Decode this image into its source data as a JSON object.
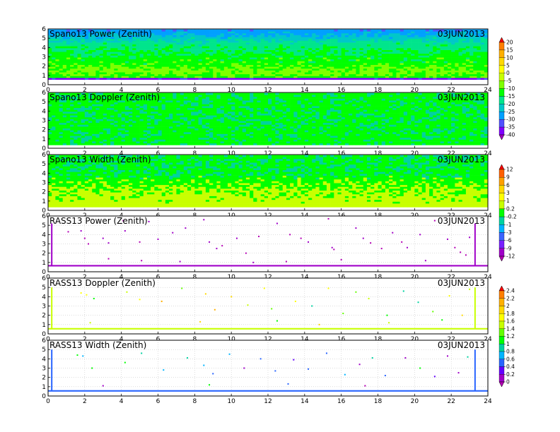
{
  "figure": {
    "date": "03JUN2013"
  },
  "chart_data": [
    {
      "type": "heatmap",
      "title": "Spano13 Power (Zenith)",
      "date": "03JUN2013",
      "xlim": [
        0,
        24
      ],
      "ylim": [
        0,
        6
      ],
      "xticks": [
        0,
        2,
        4,
        6,
        8,
        10,
        12,
        14,
        16,
        18,
        20,
        22,
        24
      ],
      "yticks": [
        0,
        1,
        2,
        3,
        4,
        5,
        6
      ],
      "colorbar": "power",
      "ymin_data": 0.55,
      "ymax_data": 5.95,
      "profile": [
        {
          "h": 0.55,
          "value": -34
        },
        {
          "h": 0.65,
          "value": -37
        },
        {
          "h": 0.8,
          "value": -12
        },
        {
          "h": 1.4,
          "value": -8
        },
        {
          "h": 2.2,
          "value": -12
        },
        {
          "h": 3.0,
          "value": -13
        },
        {
          "h": 3.8,
          "value": -16
        },
        {
          "h": 4.5,
          "value": -18
        },
        {
          "h": 5.2,
          "value": -24
        },
        {
          "h": 5.95,
          "value": -29
        }
      ]
    },
    {
      "type": "heatmap",
      "title": "Spano13 Doppler (Zenith)",
      "date": "03JUN2013",
      "xlim": [
        0,
        24
      ],
      "ylim": [
        0,
        6
      ],
      "xticks": [
        0,
        2,
        4,
        6,
        8,
        10,
        12,
        14,
        16,
        18,
        20,
        22,
        24
      ],
      "yticks": [
        0,
        1,
        2,
        3,
        4,
        5,
        6
      ],
      "colorbar": "doppler",
      "ymin_data": 0.35,
      "ymax_data": 5.95,
      "profile": [
        {
          "h": 0.35,
          "value": -0.05
        },
        {
          "h": 3.0,
          "value": -0.1
        },
        {
          "h": 5.95,
          "value": -0.05
        }
      ]
    },
    {
      "type": "heatmap",
      "title": "Spano13 Width (Zenith)",
      "date": "03JUN2013",
      "xlim": [
        0,
        24
      ],
      "ylim": [
        0,
        6
      ],
      "xticks": [
        0,
        2,
        4,
        6,
        8,
        10,
        12,
        14,
        16,
        18,
        20,
        22,
        24
      ],
      "yticks": [
        0,
        1,
        2,
        3,
        4,
        5,
        6
      ],
      "colorbar": "doppler",
      "ymin_data": 0.35,
      "ymax_data": 5.95,
      "profile": [
        {
          "h": 0.35,
          "value": 0.5
        },
        {
          "h": 1.0,
          "value": 0.4
        },
        {
          "h": 2.0,
          "value": 0.3
        },
        {
          "h": 4.0,
          "value": -0.1
        },
        {
          "h": 5.95,
          "value": -0.1
        }
      ]
    },
    {
      "type": "scatter",
      "title": "RASS13 Power (Zenith)",
      "date": "03JUN2013",
      "xlim": [
        0,
        24
      ],
      "ylim": [
        0,
        6
      ],
      "xticks": [
        0,
        2,
        4,
        6,
        8,
        10,
        12,
        14,
        16,
        18,
        20,
        22,
        24
      ],
      "yticks": [
        0,
        1,
        2,
        3,
        4,
        5,
        6
      ],
      "colorbar": "doppler",
      "baseline_height": 0.65,
      "baseline_value": -12,
      "spikes_x": [
        0.2,
        23.3
      ],
      "spike_top": 5.2,
      "points": [
        [
          1.1,
          4.3
        ],
        [
          1.8,
          4.4
        ],
        [
          2.0,
          3.6
        ],
        [
          2.2,
          3.0
        ],
        [
          3.0,
          3.6
        ],
        [
          3.3,
          3.1
        ],
        [
          4.1,
          5.5
        ],
        [
          4.2,
          4.4
        ],
        [
          5.0,
          3.2
        ],
        [
          5.5,
          5.4
        ],
        [
          6.0,
          3.5
        ],
        [
          6.8,
          4.2
        ],
        [
          7.5,
          4.7
        ],
        [
          8.5,
          5.6
        ],
        [
          8.8,
          3.2
        ],
        [
          9.2,
          2.5
        ],
        [
          9.5,
          2.8
        ],
        [
          10.3,
          3.6
        ],
        [
          10.8,
          2.0
        ],
        [
          11.5,
          3.8
        ],
        [
          12.5,
          5.2
        ],
        [
          13.2,
          4.0
        ],
        [
          13.8,
          3.6
        ],
        [
          14.2,
          3.2
        ],
        [
          15.3,
          5.7
        ],
        [
          15.5,
          2.6
        ],
        [
          15.6,
          2.4
        ],
        [
          16.8,
          4.7
        ],
        [
          17.2,
          3.6
        ],
        [
          17.6,
          3.1
        ],
        [
          18.2,
          2.5
        ],
        [
          18.8,
          4.2
        ],
        [
          19.3,
          3.2
        ],
        [
          19.6,
          2.6
        ],
        [
          20.3,
          4.0
        ],
        [
          21.1,
          5.5
        ],
        [
          21.8,
          3.5
        ],
        [
          22.2,
          2.6
        ],
        [
          22.5,
          2.1
        ],
        [
          22.8,
          1.8
        ],
        [
          23.0,
          3.7
        ],
        [
          3.3,
          1.4
        ],
        [
          5.1,
          1.2
        ],
        [
          7.2,
          1.1
        ],
        [
          11.2,
          1.0
        ],
        [
          13.0,
          1.1
        ],
        [
          16.0,
          1.3
        ],
        [
          20.6,
          1.2
        ]
      ]
    },
    {
      "type": "scatter",
      "title": "RASS13 Doppler (Zenith)",
      "date": "03JUN2013",
      "xlim": [
        0,
        24
      ],
      "ylim": [
        0,
        6
      ],
      "xticks": [
        0,
        2,
        4,
        6,
        8,
        10,
        12,
        14,
        16,
        18,
        20,
        22,
        24
      ],
      "yticks": [
        0,
        1,
        2,
        3,
        4,
        5,
        6
      ],
      "colorbar": "width",
      "baseline_height": 0.55,
      "baseline_value": 1.5,
      "spikes_x": [
        0.2,
        23.3
      ],
      "spike_top": 5.0,
      "points": [
        [
          1.8,
          4.4
        ],
        [
          2.1,
          4.2
        ],
        [
          2.5,
          3.8
        ],
        [
          4.3,
          4.5
        ],
        [
          5.0,
          3.7
        ],
        [
          6.2,
          3.5
        ],
        [
          7.3,
          4.9
        ],
        [
          8.6,
          4.3
        ],
        [
          9.1,
          2.6
        ],
        [
          10.0,
          4.0
        ],
        [
          10.9,
          3.1
        ],
        [
          11.8,
          4.9
        ],
        [
          12.2,
          2.7
        ],
        [
          13.5,
          3.5
        ],
        [
          14.4,
          3.0
        ],
        [
          15.3,
          4.9
        ],
        [
          16.1,
          2.2
        ],
        [
          16.8,
          4.5
        ],
        [
          17.5,
          3.8
        ],
        [
          18.5,
          2.0
        ],
        [
          19.4,
          4.6
        ],
        [
          20.2,
          3.4
        ],
        [
          21.0,
          2.4
        ],
        [
          21.9,
          4.1
        ],
        [
          22.6,
          2.0
        ],
        [
          23.0,
          4.8
        ],
        [
          2.3,
          1.2
        ],
        [
          8.3,
          1.3
        ],
        [
          12.5,
          1.4
        ],
        [
          14.8,
          1.0
        ],
        [
          18.6,
          1.2
        ],
        [
          21.5,
          1.5
        ]
      ]
    },
    {
      "type": "scatter",
      "title": "RASS13 Width (Zenith)",
      "date": "03JUN2013",
      "xlim": [
        0,
        24
      ],
      "ylim": [
        0,
        6
      ],
      "xticks": [
        0,
        2,
        4,
        6,
        8,
        10,
        12,
        14,
        16,
        18,
        20,
        22,
        24
      ],
      "yticks": [
        0,
        1,
        2,
        3,
        4,
        5,
        6
      ],
      "colorbar": "width",
      "baseline_height": 0.55,
      "baseline_value": 0.5,
      "spikes_x": [
        0.2,
        23.3
      ],
      "spike_top": 5.0,
      "points": [
        [
          1.6,
          4.4
        ],
        [
          1.9,
          4.3
        ],
        [
          2.4,
          3.0
        ],
        [
          4.2,
          3.6
        ],
        [
          5.1,
          4.6
        ],
        [
          6.3,
          2.8
        ],
        [
          7.6,
          4.1
        ],
        [
          8.5,
          3.3
        ],
        [
          9.0,
          2.4
        ],
        [
          9.9,
          4.5
        ],
        [
          10.7,
          3.0
        ],
        [
          11.6,
          4.0
        ],
        [
          12.4,
          2.7
        ],
        [
          13.4,
          3.9
        ],
        [
          14.2,
          2.9
        ],
        [
          15.2,
          4.6
        ],
        [
          16.2,
          2.3
        ],
        [
          17.0,
          3.4
        ],
        [
          17.7,
          4.1
        ],
        [
          18.4,
          2.2
        ],
        [
          19.5,
          4.1
        ],
        [
          20.3,
          3.0
        ],
        [
          21.1,
          2.1
        ],
        [
          21.8,
          4.3
        ],
        [
          22.4,
          2.5
        ],
        [
          22.9,
          4.2
        ],
        [
          3.0,
          1.1
        ],
        [
          8.8,
          1.2
        ],
        [
          13.1,
          1.3
        ],
        [
          17.3,
          1.1
        ]
      ]
    }
  ],
  "colorbars": {
    "power": {
      "ticks": [
        "20",
        "15",
        "10",
        "5",
        "0",
        "-5",
        "-10",
        "-15",
        "-20",
        "-25",
        "-30",
        "-35",
        "-40"
      ],
      "tick_values": [
        20,
        15,
        10,
        5,
        0,
        -5,
        -10,
        -15,
        -20,
        -25,
        -30,
        -35,
        -40
      ],
      "colors": [
        "#ff0000",
        "#ff7f00",
        "#ffb000",
        "#ffd800",
        "#ffff00",
        "#c8ff00",
        "#7fff00",
        "#00ff00",
        "#00e58c",
        "#00c8c8",
        "#00a0ff",
        "#5050ff",
        "#8000ff",
        "#a000c0"
      ]
    },
    "doppler": {
      "ticks": [
        "12",
        "9",
        "6",
        "3",
        "1",
        "0.2",
        "-0.2",
        "-1",
        "-3",
        "-6",
        "-9",
        "-12"
      ],
      "tick_values": [
        12,
        9,
        6,
        3,
        1,
        0.2,
        -0.2,
        -1,
        -3,
        -6,
        -9,
        -12
      ],
      "colors": [
        "#ff0000",
        "#ff6000",
        "#ffa000",
        "#ffd800",
        "#ffff00",
        "#c8ff00",
        "#00ff00",
        "#00d2a0",
        "#00b4ff",
        "#3c64ff",
        "#7820ff",
        "#a000c8",
        "#b400b4"
      ]
    },
    "width": {
      "ticks": [
        "2.4",
        "2.2",
        "2",
        "1.8",
        "1.6",
        "1.4",
        "1.2",
        "1",
        "0.8",
        "0.6",
        "0.4",
        "0.2",
        "0"
      ],
      "tick_values": [
        2.4,
        2.2,
        2,
        1.8,
        1.6,
        1.4,
        1.2,
        1,
        0.8,
        0.6,
        0.4,
        0.2,
        0
      ],
      "colors": [
        "#ff0000",
        "#ff7f00",
        "#ffb000",
        "#ffd800",
        "#ffff00",
        "#c8ff00",
        "#64ff00",
        "#00ff00",
        "#00d2a0",
        "#00b4ff",
        "#2864ff",
        "#6400ff",
        "#a000c8",
        "#b400b4"
      ]
    }
  }
}
